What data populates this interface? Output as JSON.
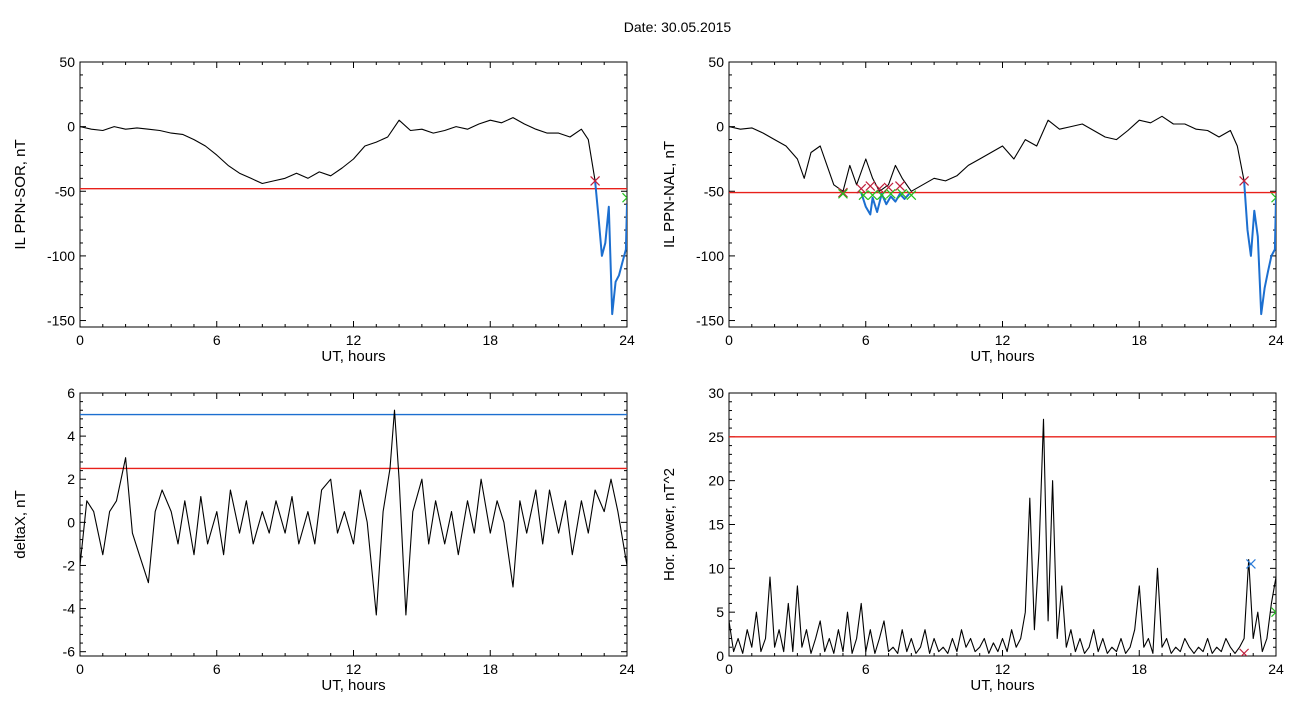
{
  "figure": {
    "title": "Date:  30.05.2015"
  },
  "colors": {
    "data": "#000000",
    "threshold_red": "#e8201a",
    "threshold_blue": "#1c6fd0",
    "marker_green": "#22c11c",
    "marker_red": "#c0203c",
    "marker_blue": "#2a7bd8"
  },
  "chart_data": [
    {
      "type": "line",
      "xlabel": "UT, hours",
      "ylabel": "IL PPN-SOR, nT",
      "xlim": [
        0,
        24
      ],
      "ylim": [
        -155,
        50
      ],
      "xticks": [
        0,
        6,
        12,
        18,
        24
      ],
      "yticks": [
        -150,
        -100,
        -50,
        0,
        50
      ],
      "xtick_labels": [
        "0",
        "6",
        "12",
        "18",
        "24"
      ],
      "ytick_labels": [
        "-150",
        "-100",
        "-50",
        "0",
        "50"
      ],
      "thresholds": [
        {
          "y": -48,
          "color": "red"
        }
      ],
      "series": [
        {
          "color": "black",
          "x": [
            0,
            0.5,
            1,
            1.5,
            2,
            2.5,
            3,
            3.5,
            4,
            4.5,
            5,
            5.5,
            6,
            6.5,
            7,
            7.5,
            8,
            8.5,
            9,
            9.5,
            10,
            10.5,
            11,
            11.5,
            12,
            12.5,
            13,
            13.5,
            14,
            14.5,
            15,
            15.5,
            16,
            16.5,
            17,
            17.5,
            18,
            18.5,
            19,
            19.5,
            20,
            20.5,
            21,
            21.5,
            22,
            22.3,
            22.6
          ],
          "y": [
            0,
            -2,
            -3,
            0,
            -2,
            -1,
            -2,
            -3,
            -5,
            -6,
            -10,
            -15,
            -22,
            -30,
            -36,
            -40,
            -44,
            -42,
            -40,
            -36,
            -40,
            -35,
            -38,
            -32,
            -25,
            -15,
            -12,
            -8,
            5,
            -3,
            -2,
            -5,
            -3,
            0,
            -2,
            2,
            5,
            3,
            7,
            2,
            -2,
            -5,
            -5,
            -8,
            -2,
            -10,
            -42
          ]
        },
        {
          "color": "blue",
          "x": [
            22.6,
            22.75,
            22.9,
            23.05,
            23.2,
            23.35,
            23.5,
            23.65,
            23.8,
            23.95,
            24
          ],
          "y": [
            -42,
            -70,
            -100,
            -90,
            -62,
            -145,
            -120,
            -115,
            -105,
            -95,
            -60
          ]
        }
      ],
      "markers": [
        {
          "x": 22.6,
          "y": -42,
          "color": "red",
          "symbol": "x"
        },
        {
          "x": 24,
          "y": -55,
          "color": "green",
          "symbol": "x"
        }
      ]
    },
    {
      "type": "line",
      "xlabel": "UT, hours",
      "ylabel": "IL PPN-NAL, nT",
      "xlim": [
        0,
        24
      ],
      "ylim": [
        -155,
        50
      ],
      "xticks": [
        0,
        6,
        12,
        18,
        24
      ],
      "yticks": [
        -150,
        -100,
        -50,
        0,
        50
      ],
      "xtick_labels": [
        "0",
        "6",
        "12",
        "18",
        "24"
      ],
      "ytick_labels": [
        "-150",
        "-100",
        "-50",
        "0",
        "50"
      ],
      "thresholds": [
        {
          "y": -51,
          "color": "red"
        }
      ],
      "series": [
        {
          "color": "black",
          "x": [
            0,
            0.5,
            1,
            1.5,
            2,
            2.5,
            3,
            3.3,
            3.6,
            4,
            4.3,
            4.6,
            5,
            5.3,
            5.6,
            6,
            6.3,
            6.6,
            7,
            7.3,
            7.6,
            8,
            8.5,
            9,
            9.5,
            10,
            10.5,
            11,
            11.5,
            12,
            12.5,
            13,
            13.5,
            14,
            14.5,
            15,
            15.5,
            16,
            16.5,
            17,
            17.5,
            18,
            18.5,
            19,
            19.5,
            20,
            20.5,
            21,
            21.5,
            22,
            22.3,
            22.6
          ],
          "y": [
            0,
            -2,
            -1,
            -5,
            -10,
            -15,
            -25,
            -40,
            -20,
            -15,
            -30,
            -45,
            -50,
            -30,
            -45,
            -25,
            -40,
            -50,
            -45,
            -30,
            -40,
            -50,
            -45,
            -40,
            -42,
            -38,
            -30,
            -25,
            -20,
            -15,
            -25,
            -10,
            -15,
            5,
            -2,
            0,
            2,
            -3,
            -8,
            -10,
            -3,
            5,
            3,
            8,
            2,
            2,
            -2,
            -3,
            -8,
            -3,
            -15,
            -42
          ]
        },
        {
          "color": "blue",
          "x": [
            22.6,
            22.75,
            22.9,
            23.05,
            23.2,
            23.35,
            23.5,
            23.65,
            23.8,
            23.95,
            24
          ],
          "y": [
            -42,
            -80,
            -100,
            -65,
            -85,
            -145,
            -125,
            -112,
            -100,
            -95,
            -55
          ]
        },
        {
          "color": "blue",
          "x": [
            5.8,
            6.0,
            6.2,
            6.3,
            6.5,
            6.7,
            6.9,
            7.1,
            7.3,
            7.5,
            7.7,
            7.9
          ],
          "y": [
            -51,
            -62,
            -68,
            -55,
            -66,
            -52,
            -60,
            -54,
            -58,
            -52,
            -56,
            -52
          ]
        }
      ],
      "markers": [
        {
          "x": 5,
          "y": -51,
          "color": "red",
          "symbol": "x"
        },
        {
          "x": 5.8,
          "y": -48,
          "color": "red",
          "symbol": "x"
        },
        {
          "x": 6.2,
          "y": -46,
          "color": "red",
          "symbol": "x"
        },
        {
          "x": 6.6,
          "y": -48,
          "color": "red",
          "symbol": "x"
        },
        {
          "x": 7.0,
          "y": -47,
          "color": "red",
          "symbol": "x"
        },
        {
          "x": 7.5,
          "y": -46,
          "color": "red",
          "symbol": "x"
        },
        {
          "x": 22.6,
          "y": -42,
          "color": "red",
          "symbol": "x"
        },
        {
          "x": 5,
          "y": -52,
          "color": "green",
          "symbol": "x"
        },
        {
          "x": 5.9,
          "y": -53,
          "color": "green",
          "symbol": "x"
        },
        {
          "x": 6.3,
          "y": -53,
          "color": "green",
          "symbol": "x"
        },
        {
          "x": 6.7,
          "y": -53,
          "color": "green",
          "symbol": "x"
        },
        {
          "x": 7.1,
          "y": -52,
          "color": "green",
          "symbol": "x"
        },
        {
          "x": 7.6,
          "y": -52,
          "color": "green",
          "symbol": "x"
        },
        {
          "x": 8.0,
          "y": -53,
          "color": "green",
          "symbol": "x"
        },
        {
          "x": 24,
          "y": -55,
          "color": "green",
          "symbol": "x"
        }
      ]
    },
    {
      "type": "line",
      "xlabel": "UT, hours",
      "ylabel": "deltaX, nT",
      "xlim": [
        0,
        24
      ],
      "ylim": [
        -6.2,
        6
      ],
      "xticks": [
        0,
        6,
        12,
        18,
        24
      ],
      "yticks": [
        -6,
        -4,
        -2,
        0,
        2,
        4,
        6
      ],
      "xtick_labels": [
        "0",
        "6",
        "12",
        "18",
        "24"
      ],
      "ytick_labels": [
        "-6",
        "-4",
        "-2",
        "0",
        "2",
        "4",
        "6"
      ],
      "thresholds": [
        {
          "y": 5,
          "color": "blue"
        },
        {
          "y": 2.5,
          "color": "red"
        }
      ],
      "series": [
        {
          "color": "black",
          "x": [
            0,
            0.3,
            0.6,
            1,
            1.3,
            1.6,
            2,
            2.3,
            2.6,
            3,
            3.3,
            3.6,
            4,
            4.3,
            4.6,
            5,
            5.3,
            5.6,
            6,
            6.3,
            6.6,
            7,
            7.3,
            7.6,
            8,
            8.3,
            8.6,
            9,
            9.3,
            9.6,
            10,
            10.3,
            10.6,
            11,
            11.3,
            11.6,
            12,
            12.3,
            12.6,
            13,
            13.3,
            13.6,
            13.8,
            14,
            14.3,
            14.6,
            15,
            15.3,
            15.6,
            16,
            16.3,
            16.6,
            17,
            17.3,
            17.6,
            18,
            18.3,
            18.6,
            19,
            19.3,
            19.6,
            20,
            20.3,
            20.6,
            21,
            21.3,
            21.6,
            22,
            22.3,
            22.6,
            23,
            23.3,
            23.6,
            24
          ],
          "y": [
            -2,
            1,
            0.5,
            -1.5,
            0.5,
            1,
            3,
            -0.5,
            -1.5,
            -2.8,
            0.5,
            1.5,
            0.5,
            -1,
            1,
            -1.5,
            1.2,
            -1,
            0.5,
            -1.5,
            1.5,
            -0.5,
            1,
            -1,
            0.5,
            -0.5,
            1,
            -0.5,
            1.2,
            -1,
            0.5,
            -1,
            1.5,
            2,
            -0.5,
            0.5,
            -1,
            1.5,
            0,
            -4.3,
            0.5,
            2.5,
            5.2,
            2,
            -4.3,
            0.5,
            2,
            -1,
            1,
            -1,
            0.5,
            -1.5,
            1,
            -0.5,
            2,
            -0.5,
            1,
            0,
            -3,
            1,
            -0.5,
            1.5,
            -1,
            1.5,
            -0.5,
            1,
            -1.5,
            1,
            -0.5,
            1.5,
            0.5,
            2,
            0.5,
            -2
          ]
        }
      ],
      "markers": []
    },
    {
      "type": "line",
      "xlabel": "UT, hours",
      "ylabel": "Hor. power, nT^2",
      "xlim": [
        0,
        24
      ],
      "ylim": [
        0,
        30
      ],
      "xticks": [
        0,
        6,
        12,
        18,
        24
      ],
      "yticks": [
        0,
        5,
        10,
        15,
        20,
        25,
        30
      ],
      "xtick_labels": [
        "0",
        "6",
        "12",
        "18",
        "24"
      ],
      "ytick_labels": [
        "0",
        "5",
        "10",
        "15",
        "20",
        "25",
        "30"
      ],
      "thresholds": [
        {
          "y": 25,
          "color": "red"
        }
      ],
      "series": [
        {
          "color": "black",
          "x": [
            0,
            0.2,
            0.4,
            0.6,
            0.8,
            1,
            1.2,
            1.4,
            1.6,
            1.8,
            2,
            2.2,
            2.4,
            2.6,
            2.8,
            3,
            3.2,
            3.4,
            3.6,
            3.8,
            4,
            4.2,
            4.4,
            4.6,
            4.8,
            5,
            5.2,
            5.4,
            5.6,
            5.8,
            6,
            6.2,
            6.4,
            6.6,
            6.8,
            7,
            7.2,
            7.4,
            7.6,
            7.8,
            8,
            8.2,
            8.4,
            8.6,
            8.8,
            9,
            9.2,
            9.4,
            9.6,
            9.8,
            10,
            10.2,
            10.4,
            10.6,
            10.8,
            11,
            11.2,
            11.4,
            11.6,
            11.8,
            12,
            12.2,
            12.4,
            12.6,
            12.8,
            13,
            13.2,
            13.4,
            13.6,
            13.8,
            14,
            14.2,
            14.4,
            14.6,
            14.8,
            15,
            15.2,
            15.4,
            15.6,
            15.8,
            16,
            16.2,
            16.4,
            16.6,
            16.8,
            17,
            17.2,
            17.4,
            17.6,
            17.8,
            18,
            18.2,
            18.4,
            18.6,
            18.8,
            19,
            19.2,
            19.4,
            19.6,
            19.8,
            20,
            20.2,
            20.4,
            20.6,
            20.8,
            21,
            21.2,
            21.4,
            21.6,
            21.8,
            22,
            22.2,
            22.4,
            22.6,
            22.8,
            23,
            23.2,
            23.4,
            23.6,
            23.8,
            24
          ],
          "y": [
            4,
            0.5,
            2,
            0.3,
            3,
            1,
            5,
            0.5,
            2,
            9,
            1,
            3,
            0.5,
            6,
            0.5,
            8,
            1,
            3,
            0.3,
            2,
            4,
            0.5,
            2,
            0.3,
            3,
            0.5,
            5,
            0.3,
            2,
            6,
            0.5,
            3,
            0.3,
            2,
            4,
            0.5,
            1,
            0.3,
            3,
            0.5,
            2,
            0.3,
            1,
            3,
            0.3,
            2,
            0.5,
            1,
            0.3,
            2,
            0.5,
            3,
            1,
            2,
            0.5,
            1,
            2,
            0.3,
            1.5,
            0.5,
            2,
            0.5,
            3,
            1,
            2,
            5,
            18,
            3,
            12,
            27,
            4,
            20,
            2,
            8,
            1,
            3,
            0.5,
            2,
            0.3,
            1,
            3,
            0.5,
            2,
            0.3,
            1,
            0.5,
            2,
            0.3,
            1,
            3,
            8,
            1,
            2,
            0.3,
            10,
            1,
            2,
            0.3,
            1,
            0.5,
            2,
            1,
            0.3,
            1,
            0.5,
            2,
            0.3,
            1,
            0.5,
            2,
            1,
            0.3,
            1,
            2,
            11,
            2,
            5,
            0.5,
            2,
            6,
            9
          ]
        }
      ],
      "markers": [
        {
          "x": 22.9,
          "y": 10.5,
          "color": "blue",
          "symbol": "x"
        },
        {
          "x": 24,
          "y": 5,
          "color": "green",
          "symbol": "x"
        },
        {
          "x": 22.6,
          "y": 0.3,
          "color": "red",
          "symbol": "x"
        }
      ]
    }
  ]
}
